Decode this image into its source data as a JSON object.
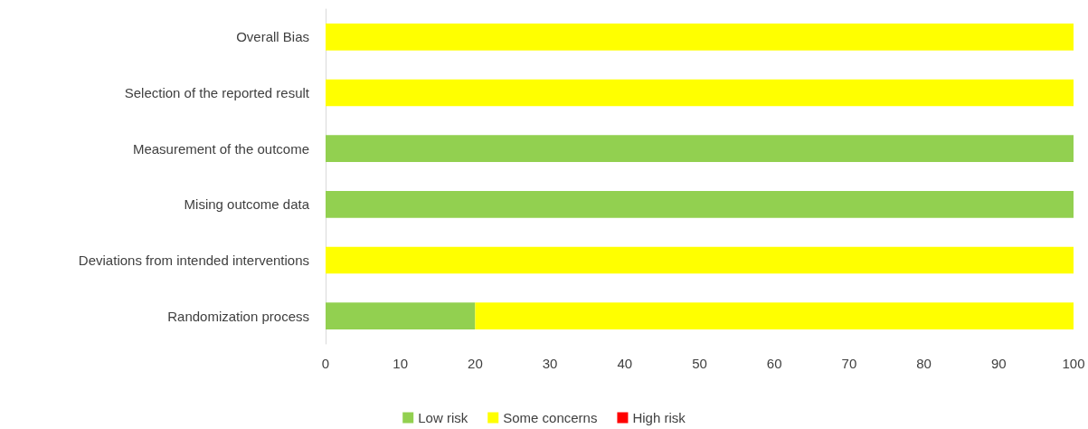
{
  "chart_data": {
    "type": "bar",
    "orientation": "horizontal",
    "stacked": true,
    "categories": [
      "Overall Bias",
      "Selection of the reported result",
      "Measurement of the outcome",
      "Mising outcome data",
      "Deviations from intended interventions",
      "Randomization process"
    ],
    "series": [
      {
        "name": "Low risk",
        "color": "#92d050",
        "values": [
          0,
          0,
          100,
          100,
          0,
          20
        ]
      },
      {
        "name": "Some concerns",
        "color": "#ffff00",
        "values": [
          100,
          100,
          0,
          0,
          100,
          80
        ]
      },
      {
        "name": "High risk",
        "color": "#ff0000",
        "values": [
          0,
          0,
          0,
          0,
          0,
          0
        ]
      }
    ],
    "xlim": [
      0,
      100
    ],
    "xticks": [
      0,
      10,
      20,
      30,
      40,
      50,
      60,
      70,
      80,
      90,
      100
    ],
    "grid": false,
    "legend": "bottom"
  }
}
